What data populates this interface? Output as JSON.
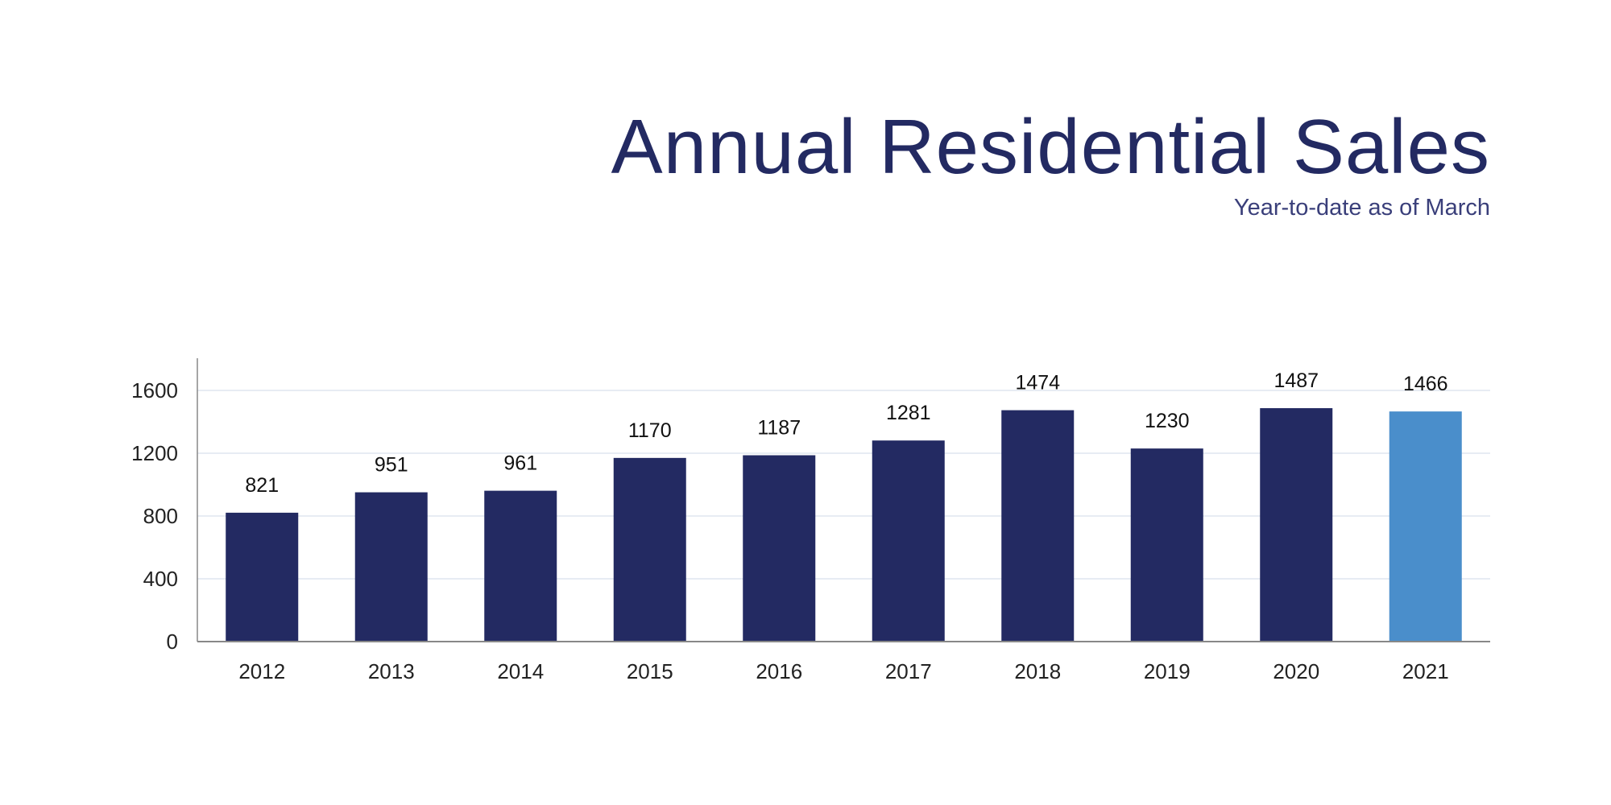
{
  "chart_data": {
    "type": "bar",
    "title": "Annual Residential Sales",
    "subtitle": "Year-to-date as of March",
    "xlabel": "",
    "ylabel": "",
    "categories": [
      "2012",
      "2013",
      "2014",
      "2015",
      "2016",
      "2017",
      "2018",
      "2019",
      "2020",
      "2021"
    ],
    "values": [
      821,
      951,
      961,
      1170,
      1187,
      1281,
      1474,
      1230,
      1487,
      1466
    ],
    "ylim": [
      0,
      1800
    ],
    "yticks": [
      0,
      400,
      800,
      1200,
      1600
    ],
    "grid": true,
    "legend": "none",
    "colors": {
      "bar": "#232a62",
      "highlight_bar": "#4a8ecb",
      "highlight_category": "2021",
      "title": "#232a62",
      "grid": "#dfe5ef",
      "axis": "#888888"
    }
  }
}
